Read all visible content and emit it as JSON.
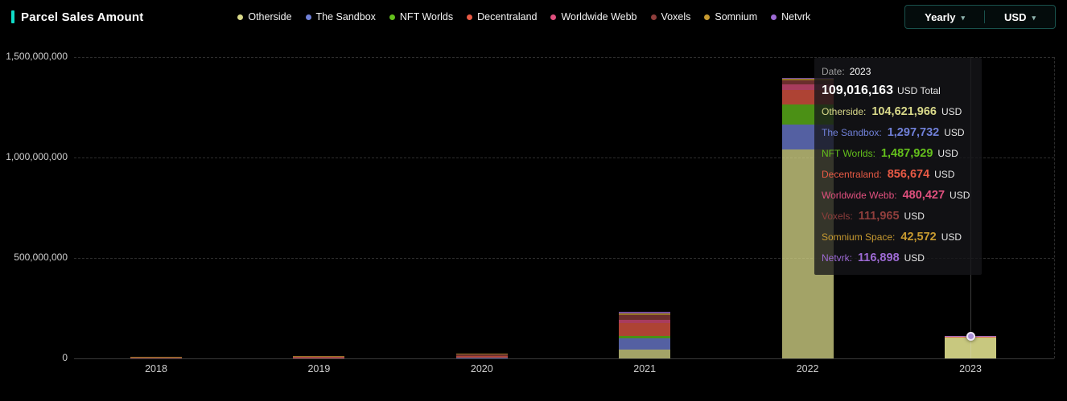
{
  "header": {
    "title": "Parcel Sales Amount",
    "accent_color": "#10dcc8"
  },
  "controls": {
    "period_label": "Yearly",
    "currency_label": "USD",
    "chevron": "▾"
  },
  "chart_data": {
    "type": "bar",
    "stacked": true,
    "title": "Parcel Sales Amount",
    "categories": [
      "2018",
      "2019",
      "2020",
      "2021",
      "2022",
      "2023"
    ],
    "series": [
      {
        "name": "Otherside",
        "color": "#d9d98a",
        "values": [
          0,
          0,
          0,
          45000000,
          1040000000,
          104621966
        ]
      },
      {
        "name": "The Sandbox",
        "color": "#7080d8",
        "values": [
          1000000,
          1000000,
          4000000,
          55000000,
          124000000,
          1297732
        ]
      },
      {
        "name": "NFT Worlds",
        "color": "#64c01c",
        "values": [
          0,
          0,
          0,
          14000000,
          100000000,
          1487929
        ]
      },
      {
        "name": "Decentraland",
        "color": "#e85a45",
        "values": [
          2500000,
          6000000,
          10000000,
          62000000,
          72000000,
          856674
        ]
      },
      {
        "name": "Worldwide Webb",
        "color": "#e0507e",
        "values": [
          0,
          0,
          0,
          18000000,
          28000000,
          480427
        ]
      },
      {
        "name": "Voxels",
        "color": "#8f3e3c",
        "values": [
          1000000,
          3000000,
          5000000,
          22000000,
          20000000,
          111965
        ]
      },
      {
        "name": "Somnium",
        "color": "#c79a30",
        "values": [
          500000,
          2000000,
          5000000,
          8000000,
          8000000,
          42572
        ]
      },
      {
        "name": "Netvrk",
        "color": "#9d6ad4",
        "values": [
          0,
          0,
          0,
          8000000,
          4000000,
          116898
        ]
      }
    ],
    "ylim": [
      0,
      1500000000
    ],
    "yticks": [
      {
        "label": "1,500,000,000",
        "value": 1500000000
      },
      {
        "label": "1,000,000,000",
        "value": 1000000000
      },
      {
        "label": "500,000,000",
        "value": 500000000
      },
      {
        "label": "0",
        "value": 0
      }
    ],
    "grid": "dashed-horizontal",
    "legend_position": "top",
    "highlight_index": 5
  },
  "tooltip": {
    "date_label": "Date:",
    "date_value": "2023",
    "total_value": "109,016,163",
    "total_unit": "USD Total",
    "rows": [
      {
        "series": "Otherside",
        "label": "Otherside:",
        "value": "104,621,966",
        "unit": "USD"
      },
      {
        "series": "The Sandbox",
        "label": "The Sandbox:",
        "value": "1,297,732",
        "unit": "USD"
      },
      {
        "series": "NFT Worlds",
        "label": "NFT Worlds:",
        "value": "1,487,929",
        "unit": "USD"
      },
      {
        "series": "Decentraland",
        "label": "Decentraland:",
        "value": "856,674",
        "unit": "USD"
      },
      {
        "series": "Worldwide Webb",
        "label": "Worldwide Webb:",
        "value": "480,427",
        "unit": "USD"
      },
      {
        "series": "Voxels",
        "label": "Voxels:",
        "value": "111,965",
        "unit": "USD"
      },
      {
        "series": "Somnium",
        "label": "Somnium Space:",
        "value": "42,572",
        "unit": "USD"
      },
      {
        "series": "Netvrk",
        "label": "Netvrk:",
        "value": "116,898",
        "unit": "USD"
      }
    ]
  }
}
